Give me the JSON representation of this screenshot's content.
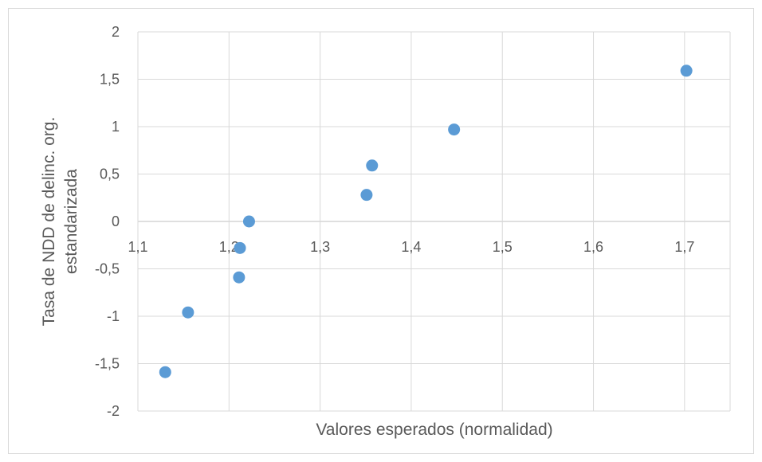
{
  "chart_data": {
    "type": "scatter",
    "title": "",
    "xlabel": "Valores esperados (normalidad)",
    "ylabel_lines": [
      "Tasa de NDD de delinc. org.",
      "estandarizada"
    ],
    "xlim": [
      1.1,
      1.75
    ],
    "ylim": [
      -2,
      2
    ],
    "x_ticks": [
      1.1,
      1.2,
      1.3,
      1.4,
      1.5,
      1.6,
      1.7
    ],
    "x_tick_labels": [
      "1,1",
      "1,2",
      "1,3",
      "1,4",
      "1,5",
      "1,6",
      "1,7"
    ],
    "y_ticks": [
      2,
      1.5,
      1,
      0.5,
      0,
      -0.5,
      -1,
      -1.5,
      -2
    ],
    "y_tick_labels": [
      "2",
      "1,5",
      "1",
      "0,5",
      "0",
      "-0,5",
      "-1",
      "-1,5",
      "-2"
    ],
    "grid": true,
    "marker_color": "#5b9bd5",
    "points": [
      {
        "x": 1.13,
        "y": -1.59
      },
      {
        "x": 1.155,
        "y": -0.96
      },
      {
        "x": 1.211,
        "y": -0.59
      },
      {
        "x": 1.212,
        "y": -0.28
      },
      {
        "x": 1.222,
        "y": 0.0
      },
      {
        "x": 1.351,
        "y": 0.28
      },
      {
        "x": 1.357,
        "y": 0.59
      },
      {
        "x": 1.447,
        "y": 0.97
      },
      {
        "x": 1.702,
        "y": 1.59
      }
    ]
  }
}
